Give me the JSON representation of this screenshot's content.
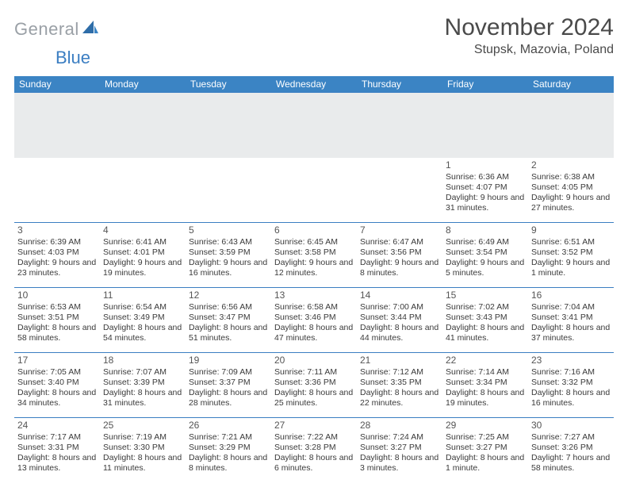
{
  "logo": {
    "gray": "General",
    "blue": "Blue"
  },
  "title": "November 2024",
  "location": "Stupsk, Mazovia, Poland",
  "colors": {
    "header_bg": "#3b84c4",
    "header_fg": "#ffffff",
    "band_bg": "#e9ebec",
    "border": "#3b7ec2",
    "logo_gray": "#9aa0a6",
    "logo_blue": "#3b7ec2",
    "text": "#3a3a3a"
  },
  "day_headers": [
    "Sunday",
    "Monday",
    "Tuesday",
    "Wednesday",
    "Thursday",
    "Friday",
    "Saturday"
  ],
  "weeks": [
    [
      null,
      null,
      null,
      null,
      null,
      {
        "n": "1",
        "sr": "6:36 AM",
        "ss": "4:07 PM",
        "dl": "9 hours and 31 minutes."
      },
      {
        "n": "2",
        "sr": "6:38 AM",
        "ss": "4:05 PM",
        "dl": "9 hours and 27 minutes."
      }
    ],
    [
      {
        "n": "3",
        "sr": "6:39 AM",
        "ss": "4:03 PM",
        "dl": "9 hours and 23 minutes."
      },
      {
        "n": "4",
        "sr": "6:41 AM",
        "ss": "4:01 PM",
        "dl": "9 hours and 19 minutes."
      },
      {
        "n": "5",
        "sr": "6:43 AM",
        "ss": "3:59 PM",
        "dl": "9 hours and 16 minutes."
      },
      {
        "n": "6",
        "sr": "6:45 AM",
        "ss": "3:58 PM",
        "dl": "9 hours and 12 minutes."
      },
      {
        "n": "7",
        "sr": "6:47 AM",
        "ss": "3:56 PM",
        "dl": "9 hours and 8 minutes."
      },
      {
        "n": "8",
        "sr": "6:49 AM",
        "ss": "3:54 PM",
        "dl": "9 hours and 5 minutes."
      },
      {
        "n": "9",
        "sr": "6:51 AM",
        "ss": "3:52 PM",
        "dl": "9 hours and 1 minute."
      }
    ],
    [
      {
        "n": "10",
        "sr": "6:53 AM",
        "ss": "3:51 PM",
        "dl": "8 hours and 58 minutes."
      },
      {
        "n": "11",
        "sr": "6:54 AM",
        "ss": "3:49 PM",
        "dl": "8 hours and 54 minutes."
      },
      {
        "n": "12",
        "sr": "6:56 AM",
        "ss": "3:47 PM",
        "dl": "8 hours and 51 minutes."
      },
      {
        "n": "13",
        "sr": "6:58 AM",
        "ss": "3:46 PM",
        "dl": "8 hours and 47 minutes."
      },
      {
        "n": "14",
        "sr": "7:00 AM",
        "ss": "3:44 PM",
        "dl": "8 hours and 44 minutes."
      },
      {
        "n": "15",
        "sr": "7:02 AM",
        "ss": "3:43 PM",
        "dl": "8 hours and 41 minutes."
      },
      {
        "n": "16",
        "sr": "7:04 AM",
        "ss": "3:41 PM",
        "dl": "8 hours and 37 minutes."
      }
    ],
    [
      {
        "n": "17",
        "sr": "7:05 AM",
        "ss": "3:40 PM",
        "dl": "8 hours and 34 minutes."
      },
      {
        "n": "18",
        "sr": "7:07 AM",
        "ss": "3:39 PM",
        "dl": "8 hours and 31 minutes."
      },
      {
        "n": "19",
        "sr": "7:09 AM",
        "ss": "3:37 PM",
        "dl": "8 hours and 28 minutes."
      },
      {
        "n": "20",
        "sr": "7:11 AM",
        "ss": "3:36 PM",
        "dl": "8 hours and 25 minutes."
      },
      {
        "n": "21",
        "sr": "7:12 AM",
        "ss": "3:35 PM",
        "dl": "8 hours and 22 minutes."
      },
      {
        "n": "22",
        "sr": "7:14 AM",
        "ss": "3:34 PM",
        "dl": "8 hours and 19 minutes."
      },
      {
        "n": "23",
        "sr": "7:16 AM",
        "ss": "3:32 PM",
        "dl": "8 hours and 16 minutes."
      }
    ],
    [
      {
        "n": "24",
        "sr": "7:17 AM",
        "ss": "3:31 PM",
        "dl": "8 hours and 13 minutes."
      },
      {
        "n": "25",
        "sr": "7:19 AM",
        "ss": "3:30 PM",
        "dl": "8 hours and 11 minutes."
      },
      {
        "n": "26",
        "sr": "7:21 AM",
        "ss": "3:29 PM",
        "dl": "8 hours and 8 minutes."
      },
      {
        "n": "27",
        "sr": "7:22 AM",
        "ss": "3:28 PM",
        "dl": "8 hours and 6 minutes."
      },
      {
        "n": "28",
        "sr": "7:24 AM",
        "ss": "3:27 PM",
        "dl": "8 hours and 3 minutes."
      },
      {
        "n": "29",
        "sr": "7:25 AM",
        "ss": "3:27 PM",
        "dl": "8 hours and 1 minute."
      },
      {
        "n": "30",
        "sr": "7:27 AM",
        "ss": "3:26 PM",
        "dl": "7 hours and 58 minutes."
      }
    ]
  ],
  "labels": {
    "sunrise": "Sunrise: ",
    "sunset": "Sunset: ",
    "daylight": "Daylight: "
  }
}
